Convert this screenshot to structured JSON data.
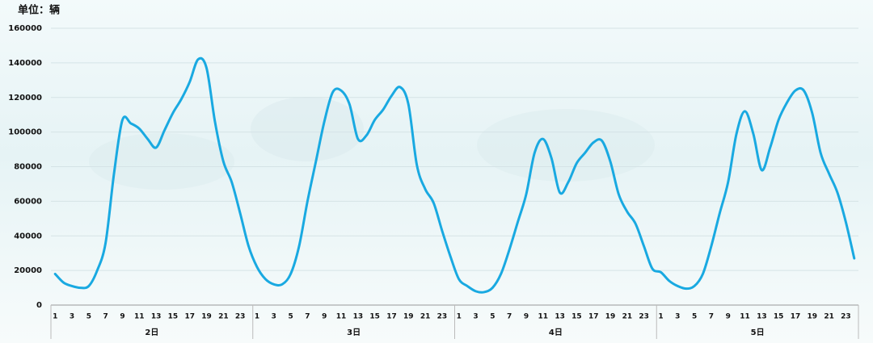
{
  "chart_data": {
    "type": "line",
    "y_label": "单位：辆",
    "color": "#19a9e1",
    "categories": [
      "1",
      null,
      "3",
      null,
      "5",
      null,
      "7",
      null,
      "9",
      null,
      "11",
      null,
      "13",
      null,
      "15",
      null,
      "17",
      null,
      "19",
      null,
      "21",
      null,
      "23",
      null,
      "1",
      null,
      "3",
      null,
      "5",
      null,
      "7",
      null,
      "9",
      null,
      "11",
      null,
      "13",
      null,
      "15",
      null,
      "17",
      null,
      "19",
      null,
      "21",
      null,
      "23",
      null,
      "1",
      null,
      "3",
      null,
      "5",
      null,
      "7",
      null,
      "9",
      null,
      "11",
      null,
      "13",
      null,
      "15",
      null,
      "17",
      null,
      "19",
      null,
      "21",
      null,
      "23",
      null,
      "1",
      null,
      "3",
      null,
      "5",
      null,
      "7",
      null,
      "9",
      null,
      "11",
      null,
      "13",
      null,
      "15",
      null,
      "17",
      null,
      "19",
      null,
      "21",
      null,
      "23",
      null
    ],
    "x_groups": [
      "2日",
      "3日",
      "4日",
      "5日"
    ],
    "values": [
      18000,
      13000,
      11000,
      10000,
      11000,
      20000,
      36000,
      76000,
      107000,
      105000,
      102000,
      96000,
      91000,
      101000,
      111000,
      119000,
      129000,
      142000,
      137000,
      106000,
      83000,
      71000,
      53000,
      34000,
      22000,
      15000,
      12000,
      12000,
      18000,
      34000,
      60000,
      83000,
      106000,
      123000,
      124000,
      116000,
      96000,
      98000,
      107000,
      113000,
      121000,
      126000,
      116000,
      81000,
      67000,
      59000,
      43000,
      28000,
      15000,
      11000,
      8000,
      7500,
      10000,
      18000,
      32000,
      48000,
      64000,
      88000,
      96000,
      85000,
      65000,
      71000,
      82000,
      88000,
      94000,
      95000,
      83000,
      64000,
      54000,
      47000,
      34000,
      21000,
      19000,
      14000,
      11000,
      9500,
      11000,
      18000,
      34000,
      53000,
      71000,
      99000,
      112000,
      99000,
      78000,
      91000,
      107000,
      117000,
      124000,
      124000,
      111000,
      88000,
      76000,
      65000,
      48000,
      27000
    ],
    "ylim": [
      0,
      160000
    ],
    "yticks": [
      0,
      20000,
      40000,
      60000,
      80000,
      100000,
      120000,
      140000,
      160000
    ],
    "grid": true
  }
}
